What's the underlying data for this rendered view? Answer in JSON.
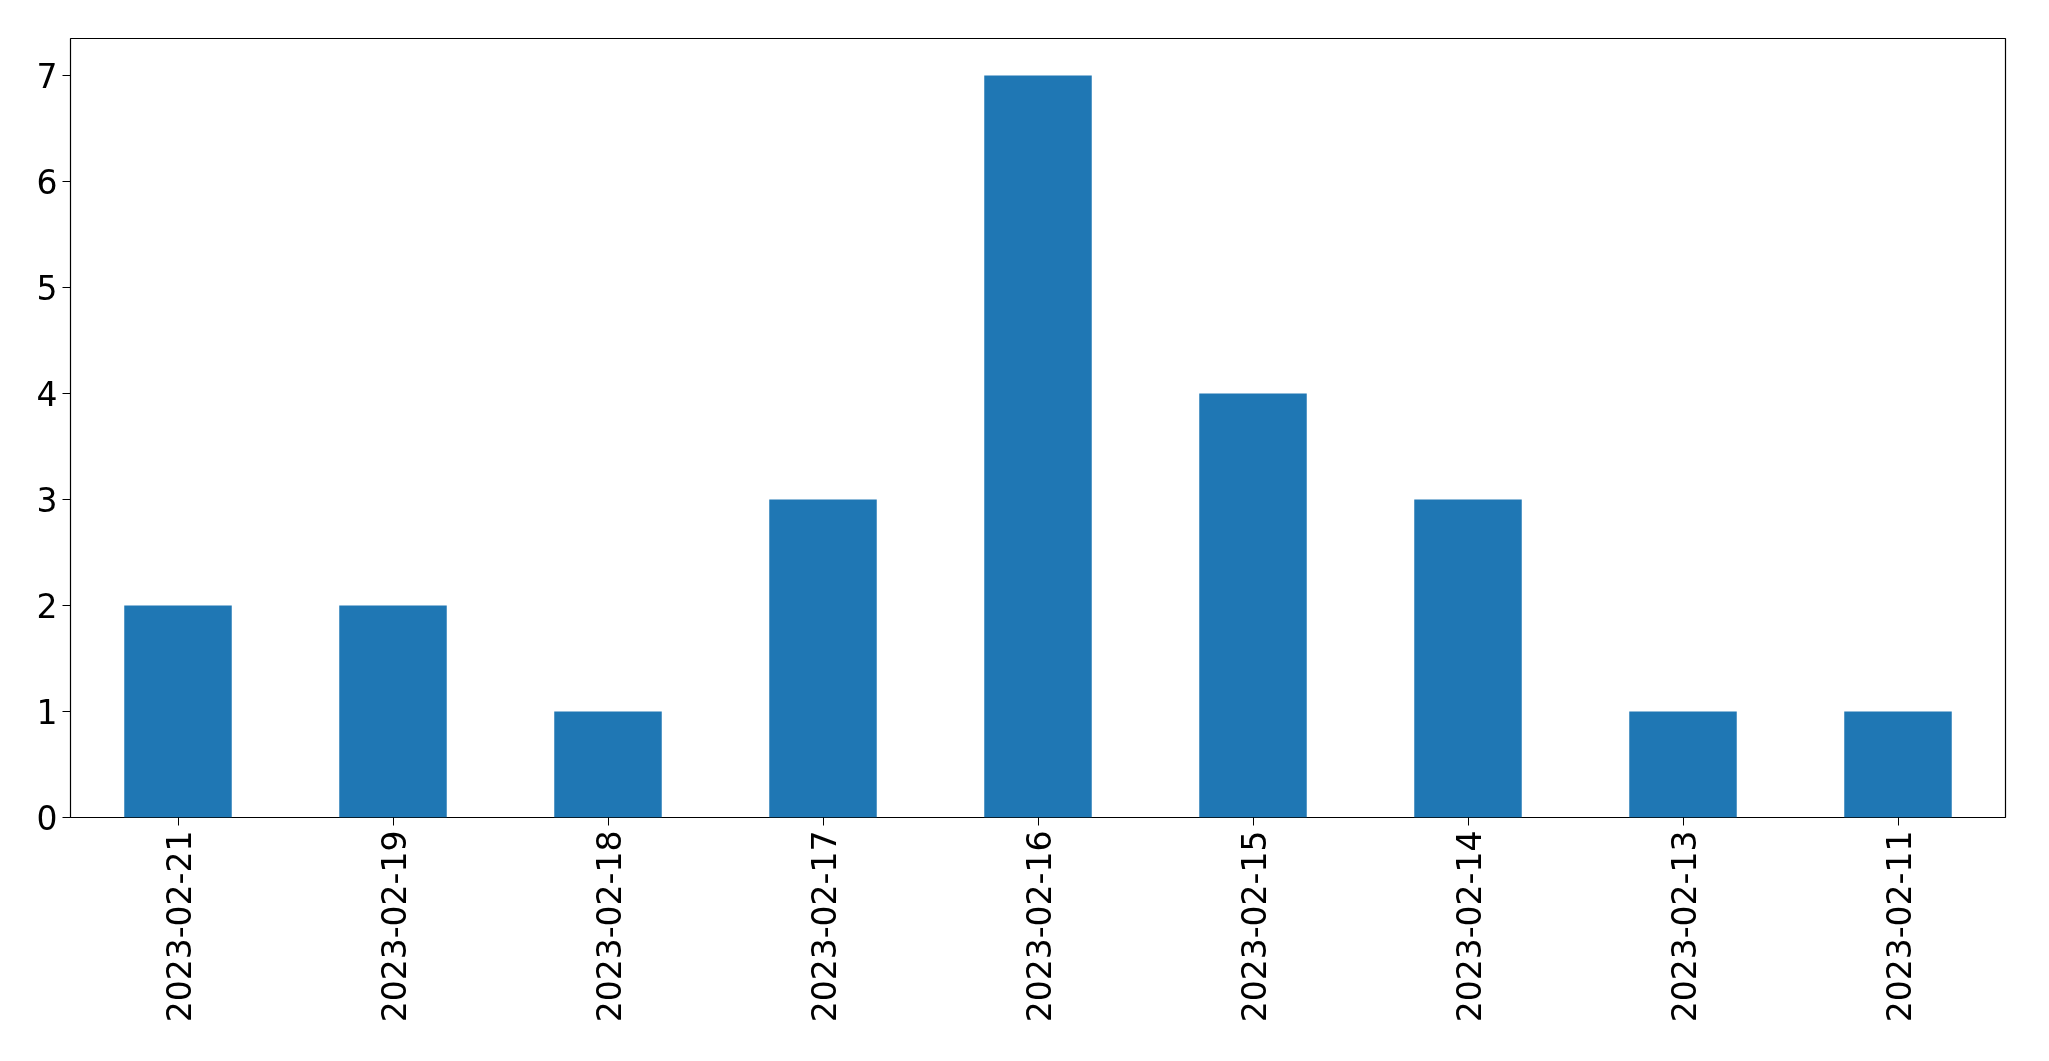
{
  "chart_data": {
    "type": "bar",
    "categories": [
      "2023-02-21",
      "2023-02-19",
      "2023-02-18",
      "2023-02-17",
      "2023-02-16",
      "2023-02-15",
      "2023-02-14",
      "2023-02-13",
      "2023-02-11"
    ],
    "values": [
      2,
      2,
      1,
      3,
      7,
      4,
      3,
      1,
      1
    ],
    "color": "#1f77b4",
    "ylim": [
      0,
      7.35
    ],
    "yticks": [
      0,
      1,
      2,
      3,
      4,
      5,
      6,
      7
    ],
    "grid": false
  }
}
